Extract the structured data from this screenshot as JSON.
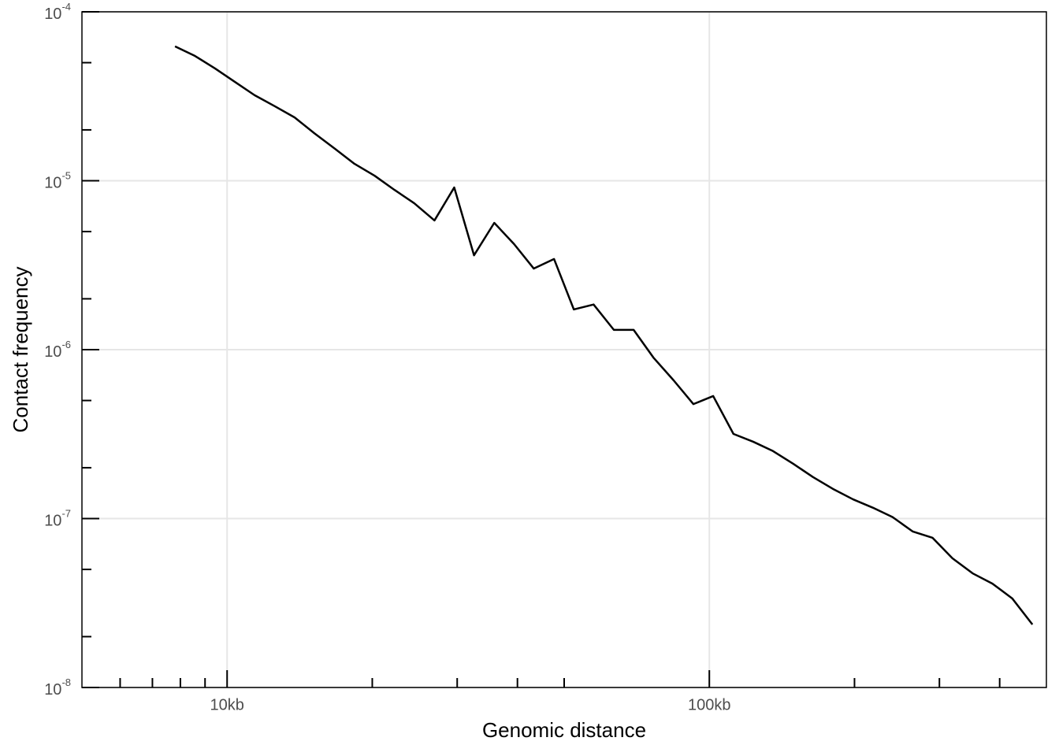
{
  "chart_data": {
    "type": "line",
    "x_label": "Genomic distance",
    "y_label": "Contact frequency",
    "x": [
      7798,
      8576,
      9441,
      10375,
      11402,
      12560,
      13804,
      15171,
      16711,
      18365,
      20230,
      22233,
      24434,
      26915,
      29580,
      32509,
      35810,
      39355,
      43251,
      47643,
      52360,
      57544,
      63387,
      69663,
      76560,
      84333,
      92683,
      101860,
      112202,
      123310,
      135520,
      149279,
      164059,
      180302,
      198609,
      218273,
      239883,
      264241,
      290402,
      319154,
      351560,
      386367,
      424620,
      467735
    ],
    "values": [
      6.24e-05,
      5.48e-05,
      4.62e-05,
      3.85e-05,
      3.21e-05,
      2.76e-05,
      2.37e-05,
      1.91e-05,
      1.55e-05,
      1.26e-05,
      1.07e-05,
      8.83e-06,
      7.36e-06,
      5.82e-06,
      9.12e-06,
      3.62e-06,
      5.63e-06,
      4.22e-06,
      3.02e-06,
      3.44e-06,
      1.73e-06,
      1.85e-06,
      1.31e-06,
      1.31e-06,
      8.98e-07,
      6.58e-07,
      4.76e-07,
      5.31e-07,
      3.17e-07,
      2.85e-07,
      2.51e-07,
      2.11e-07,
      1.76e-07,
      1.5e-07,
      1.3e-07,
      1.16e-07,
      1.02e-07,
      8.38e-08,
      7.69e-08,
      5.82e-08,
      4.74e-08,
      4.12e-08,
      3.37e-08,
      2.36e-08
    ],
    "color": "#000000",
    "xlog": true,
    "ylog": true,
    "xlim": [
      5000,
      500000
    ],
    "ylim": [
      1e-08,
      0.0001
    ],
    "xticks": [
      {
        "value": 10000,
        "label": "10kb"
      },
      {
        "value": 100000,
        "label": "100kb"
      }
    ],
    "xminorticks": [
      6000,
      7000,
      8000,
      9000,
      20000,
      30000,
      40000,
      50000,
      200000,
      300000,
      400000
    ],
    "yticks": [
      {
        "value": 1e-08,
        "label": "10",
        "exponent": "-8"
      },
      {
        "value": 1e-07,
        "label": "10",
        "exponent": "-7"
      },
      {
        "value": 1e-06,
        "label": "10",
        "exponent": "-6"
      },
      {
        "value": 1e-05,
        "label": "10",
        "exponent": "-5"
      },
      {
        "value": 0.0001,
        "label": "10",
        "exponent": "-4"
      }
    ],
    "yminorticks": [
      2e-08,
      5e-08,
      2e-07,
      5e-07,
      2e-06,
      5e-06,
      2e-05,
      5e-05
    ],
    "grid": true
  }
}
